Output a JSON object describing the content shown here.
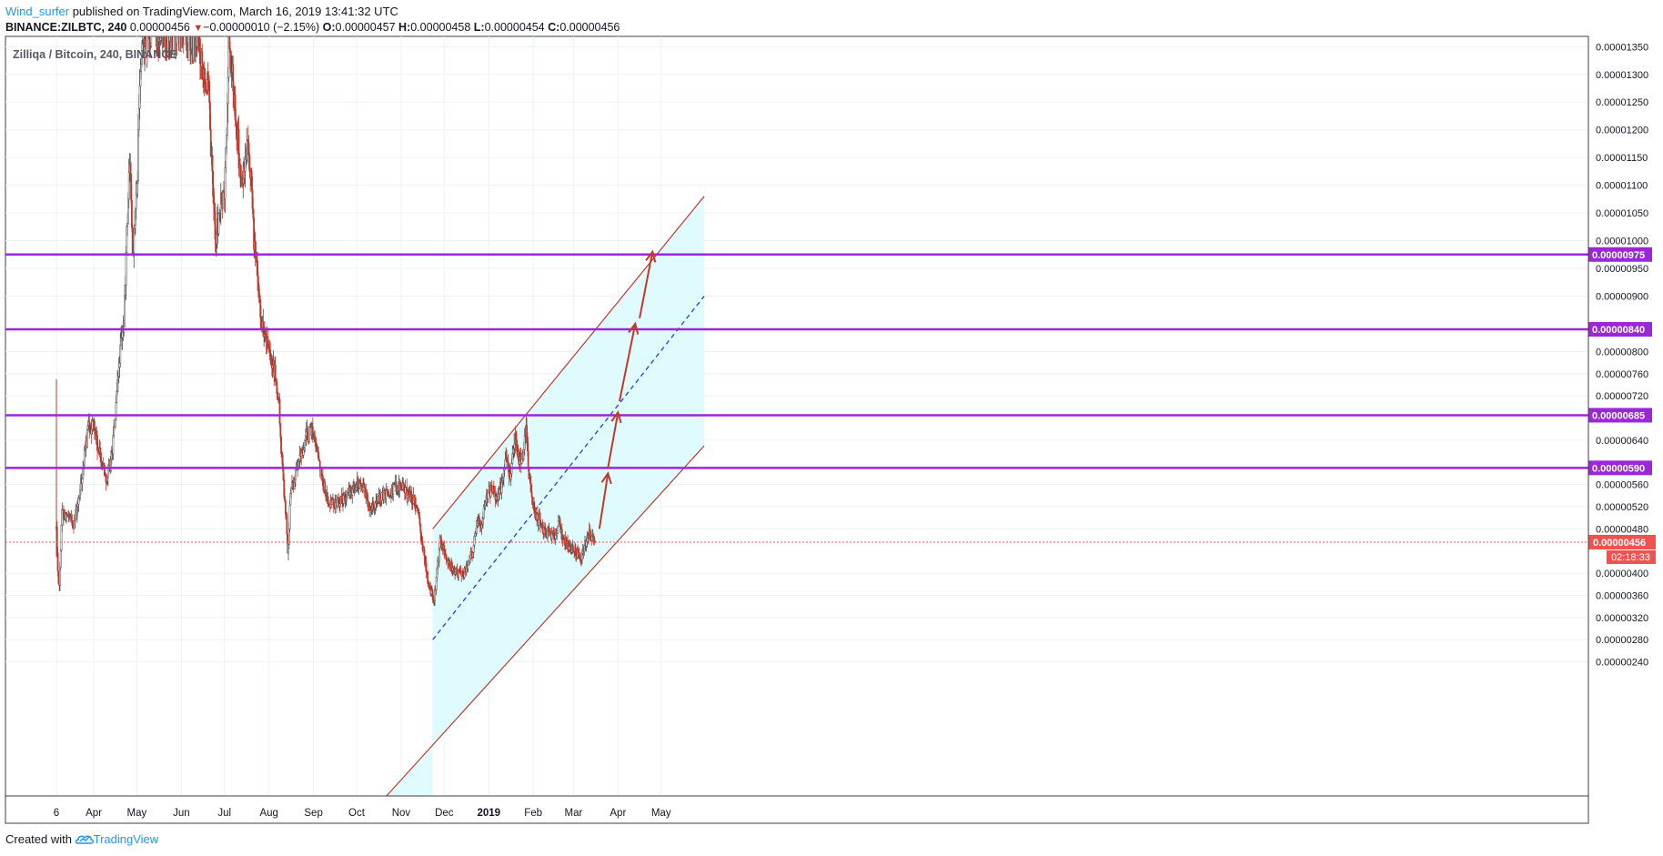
{
  "header": {
    "author": "Wind_surfer",
    "published_text": "published on TradingView.com, March 16, 2019 13:41:32 UTC",
    "symbol": "BINANCE:ZILBTC, 240",
    "last_value": "0.00000456",
    "change_arrow": "▼",
    "change": "−0.00000010 (−2.15%)",
    "o_label": "O:",
    "o_value": "0.00000457",
    "h_label": "H:",
    "h_value": "0.00000458",
    "l_label": "L:",
    "l_value": "0.00000454",
    "c_label": "C:",
    "c_value": "0.00000456"
  },
  "footer": {
    "created_with": "Created with",
    "brand": "TradingView",
    "brand_icon": "tradingview-cloud-icon"
  },
  "colors": {
    "level_line": "#9c27d8",
    "channel_fill": "#e0fbfd",
    "channel_border": "#c0392b",
    "midline": "#1f3fdc",
    "arrow": "#c0392b",
    "up_candle": "#ffffff",
    "down_candle": "#c0392b",
    "candle_outline": "#4a4a4a",
    "current_price": "#ef5350",
    "grid": "#eef1f4"
  },
  "chart_data": {
    "type": "candlestick",
    "title": "Zilliqa / Bitcoin, 240, BINANCE",
    "xlabel": "",
    "ylabel": "",
    "x_start": "2018-03-06",
    "x_end": "2019-06-01",
    "ylim": [
      2e-06,
      1.4e-05
    ],
    "grid": true,
    "x_ticks": [
      {
        "label": "6",
        "date": "2018-03-06"
      },
      {
        "label": "Apr",
        "date": "2018-04-01"
      },
      {
        "label": "May",
        "date": "2018-05-01"
      },
      {
        "label": "Jun",
        "date": "2018-06-01"
      },
      {
        "label": "Jul",
        "date": "2018-07-01"
      },
      {
        "label": "Aug",
        "date": "2018-08-01"
      },
      {
        "label": "Sep",
        "date": "2018-09-01"
      },
      {
        "label": "Oct",
        "date": "2018-10-01"
      },
      {
        "label": "Nov",
        "date": "2018-11-01"
      },
      {
        "label": "Dec",
        "date": "2018-12-01"
      },
      {
        "label": "2019",
        "date": "2019-01-01",
        "bold": true
      },
      {
        "label": "Feb",
        "date": "2019-02-01"
      },
      {
        "label": "Mar",
        "date": "2019-03-01"
      },
      {
        "label": "Apr",
        "date": "2019-04-01"
      },
      {
        "label": "May",
        "date": "2019-05-01"
      }
    ],
    "y_ticks": [
      {
        "label": "0.00001350",
        "value": 1.35e-05
      },
      {
        "label": "0.00001300",
        "value": 1.3e-05
      },
      {
        "label": "0.00001250",
        "value": 1.25e-05
      },
      {
        "label": "0.00001200",
        "value": 1.2e-05
      },
      {
        "label": "0.00001150",
        "value": 1.15e-05
      },
      {
        "label": "0.00001100",
        "value": 1.1e-05
      },
      {
        "label": "0.00001050",
        "value": 1.05e-05
      },
      {
        "label": "0.00001000",
        "value": 1e-05
      },
      {
        "label": "0.00000950",
        "value": 9.5e-06
      },
      {
        "label": "0.00000900",
        "value": 9e-06
      },
      {
        "label": "0.00000800",
        "value": 8e-06
      },
      {
        "label": "0.00000760",
        "value": 7.6e-06
      },
      {
        "label": "0.00000720",
        "value": 7.2e-06
      },
      {
        "label": "0.00000640",
        "value": 6.4e-06
      },
      {
        "label": "0.00000560",
        "value": 5.6e-06
      },
      {
        "label": "0.00000520",
        "value": 5.2e-06
      },
      {
        "label": "0.00000480",
        "value": 4.8e-06
      },
      {
        "label": "0.00000400",
        "value": 4e-06
      },
      {
        "label": "0.00000360",
        "value": 3.6e-06
      },
      {
        "label": "0.00000320",
        "value": 3.2e-06
      },
      {
        "label": "0.00000280",
        "value": 2.8e-06
      },
      {
        "label": "0.00000240",
        "value": 2.4e-06
      }
    ],
    "levels": [
      {
        "label": "0.00000975",
        "value": 9.75e-06
      },
      {
        "label": "0.00000840",
        "value": 8.4e-06
      },
      {
        "label": "0.00000685",
        "value": 6.85e-06
      },
      {
        "label": "0.00000590",
        "value": 5.9e-06
      }
    ],
    "current_price": {
      "label": "0.00000456",
      "value": 4.56e-06,
      "countdown": "02:18:33"
    },
    "close_path": [
      [
        "2018-03-06",
        4.8e-06
      ],
      [
        "2018-03-07",
        4e-06
      ],
      [
        "2018-03-08",
        3.8e-06
      ],
      [
        "2018-03-10",
        5.1e-06
      ],
      [
        "2018-03-14",
        5e-06
      ],
      [
        "2018-03-18",
        4.9e-06
      ],
      [
        "2018-03-21",
        5.2e-06
      ],
      [
        "2018-03-25",
        6e-06
      ],
      [
        "2018-03-28",
        6.6e-06
      ],
      [
        "2018-04-01",
        6.7e-06
      ],
      [
        "2018-04-04",
        6.2e-06
      ],
      [
        "2018-04-07",
        6e-06
      ],
      [
        "2018-04-10",
        5.7e-06
      ],
      [
        "2018-04-13",
        6e-06
      ],
      [
        "2018-04-16",
        6.8e-06
      ],
      [
        "2018-04-19",
        7.9e-06
      ],
      [
        "2018-04-22",
        8.5e-06
      ],
      [
        "2018-04-24",
        1.01e-05
      ],
      [
        "2018-04-26",
        1.15e-05
      ],
      [
        "2018-04-28",
        9.8e-06
      ],
      [
        "2018-05-01",
        1.08e-05
      ],
      [
        "2018-05-03",
        1.28e-05
      ],
      [
        "2018-05-06",
        1.37e-05
      ],
      [
        "2018-05-09",
        1.38e-05
      ],
      [
        "2018-05-12",
        1.39e-05
      ],
      [
        "2018-05-30",
        1.39e-05
      ],
      [
        "2018-06-12",
        1.39e-05
      ],
      [
        "2018-06-14",
        1.34e-05
      ],
      [
        "2018-06-17",
        1.31e-05
      ],
      [
        "2018-06-20",
        1.26e-05
      ],
      [
        "2018-06-22",
        1.13e-05
      ],
      [
        "2018-06-25",
        1e-05
      ],
      [
        "2018-06-28",
        1.06e-05
      ],
      [
        "2018-07-01",
        1.08e-05
      ],
      [
        "2018-07-03",
        1.24e-05
      ],
      [
        "2018-07-04",
        1.36e-05
      ],
      [
        "2018-07-07",
        1.28e-05
      ],
      [
        "2018-07-10",
        1.2e-05
      ],
      [
        "2018-07-12",
        1.1e-05
      ],
      [
        "2018-07-15",
        1.12e-05
      ],
      [
        "2018-07-17",
        1.16e-05
      ],
      [
        "2018-07-19",
        1.13e-05
      ],
      [
        "2018-07-21",
        1.02e-05
      ],
      [
        "2018-07-24",
        9.3e-06
      ],
      [
        "2018-07-27",
        8.5e-06
      ],
      [
        "2018-07-30",
        8.2e-06
      ],
      [
        "2018-08-02",
        7.8e-06
      ],
      [
        "2018-08-05",
        7.6e-06
      ],
      [
        "2018-08-08",
        7e-06
      ],
      [
        "2018-08-10",
        6e-06
      ],
      [
        "2018-08-13",
        5e-06
      ],
      [
        "2018-08-14",
        4.3e-06
      ],
      [
        "2018-08-16",
        5.5e-06
      ],
      [
        "2018-08-20",
        5.8e-06
      ],
      [
        "2018-08-24",
        6.2e-06
      ],
      [
        "2018-08-28",
        6.5e-06
      ],
      [
        "2018-08-31",
        6.6e-06
      ],
      [
        "2018-09-03",
        6.3e-06
      ],
      [
        "2018-09-07",
        5.7e-06
      ],
      [
        "2018-09-12",
        5.2e-06
      ],
      [
        "2018-09-18",
        5.3e-06
      ],
      [
        "2018-09-24",
        5.4e-06
      ],
      [
        "2018-10-01",
        5.6e-06
      ],
      [
        "2018-10-05",
        5.6e-06
      ],
      [
        "2018-10-10",
        5.2e-06
      ],
      [
        "2018-10-15",
        5.3e-06
      ],
      [
        "2018-10-20",
        5.4e-06
      ],
      [
        "2018-10-25",
        5.5e-06
      ],
      [
        "2018-10-30",
        5.6e-06
      ],
      [
        "2018-11-04",
        5.5e-06
      ],
      [
        "2018-11-10",
        5.3e-06
      ],
      [
        "2018-11-13",
        5e-06
      ],
      [
        "2018-11-17",
        4.3e-06
      ],
      [
        "2018-11-20",
        3.8e-06
      ],
      [
        "2018-11-24",
        3.5e-06
      ],
      [
        "2018-11-26",
        4e-06
      ],
      [
        "2018-11-28",
        4.6e-06
      ],
      [
        "2018-12-02",
        4.3e-06
      ],
      [
        "2018-12-06",
        4.1e-06
      ],
      [
        "2018-12-10",
        4e-06
      ],
      [
        "2018-12-15",
        4e-06
      ],
      [
        "2018-12-18",
        4.2e-06
      ],
      [
        "2018-12-21",
        4.4e-06
      ],
      [
        "2018-12-24",
        5e-06
      ],
      [
        "2018-12-27",
        4.9e-06
      ],
      [
        "2018-12-31",
        5.4e-06
      ],
      [
        "2019-01-03",
        5.5e-06
      ],
      [
        "2019-01-07",
        5.4e-06
      ],
      [
        "2019-01-10",
        5.6e-06
      ],
      [
        "2019-01-13",
        6e-06
      ],
      [
        "2019-01-16",
        5.8e-06
      ],
      [
        "2019-01-19",
        6.4e-06
      ],
      [
        "2019-01-22",
        6e-06
      ],
      [
        "2019-01-25",
        6.2e-06
      ],
      [
        "2019-01-27",
        6.6e-06
      ],
      [
        "2019-01-29",
        5.8e-06
      ],
      [
        "2019-02-01",
        5.2e-06
      ],
      [
        "2019-02-04",
        5e-06
      ],
      [
        "2019-02-08",
        4.8e-06
      ],
      [
        "2019-02-12",
        4.7e-06
      ],
      [
        "2019-02-16",
        4.7e-06
      ],
      [
        "2019-02-19",
        4.9e-06
      ],
      [
        "2019-02-22",
        4.6e-06
      ],
      [
        "2019-02-26",
        4.5e-06
      ],
      [
        "2019-03-02",
        4.4e-06
      ],
      [
        "2019-03-06",
        4.3e-06
      ],
      [
        "2019-03-09",
        4.5e-06
      ],
      [
        "2019-03-12",
        4.7e-06
      ],
      [
        "2019-03-15",
        4.6e-06
      ],
      [
        "2019-03-16",
        4.56e-06
      ]
    ],
    "channel": {
      "start_date": "2018-11-23",
      "end_date": "2019-05-31",
      "upper": [
        4.8e-06,
        1.08e-05
      ],
      "lower": [
        9e-07,
        6.3e-06
      ],
      "mid": [
        2.8e-06,
        9e-06
      ]
    },
    "arrows": [
      {
        "from": [
          "2019-03-19",
          4.8e-06
        ],
        "to": [
          "2019-03-25",
          5.8e-06
        ]
      },
      {
        "from": [
          "2019-03-25",
          5.9e-06
        ],
        "to": [
          "2019-04-01",
          6.9e-06
        ]
      },
      {
        "from": [
          "2019-04-02",
          7.1e-06
        ],
        "to": [
          "2019-04-13",
          8.5e-06
        ]
      },
      {
        "from": [
          "2019-04-16",
          8.6e-06
        ],
        "to": [
          "2019-04-25",
          9.8e-06
        ]
      }
    ]
  }
}
